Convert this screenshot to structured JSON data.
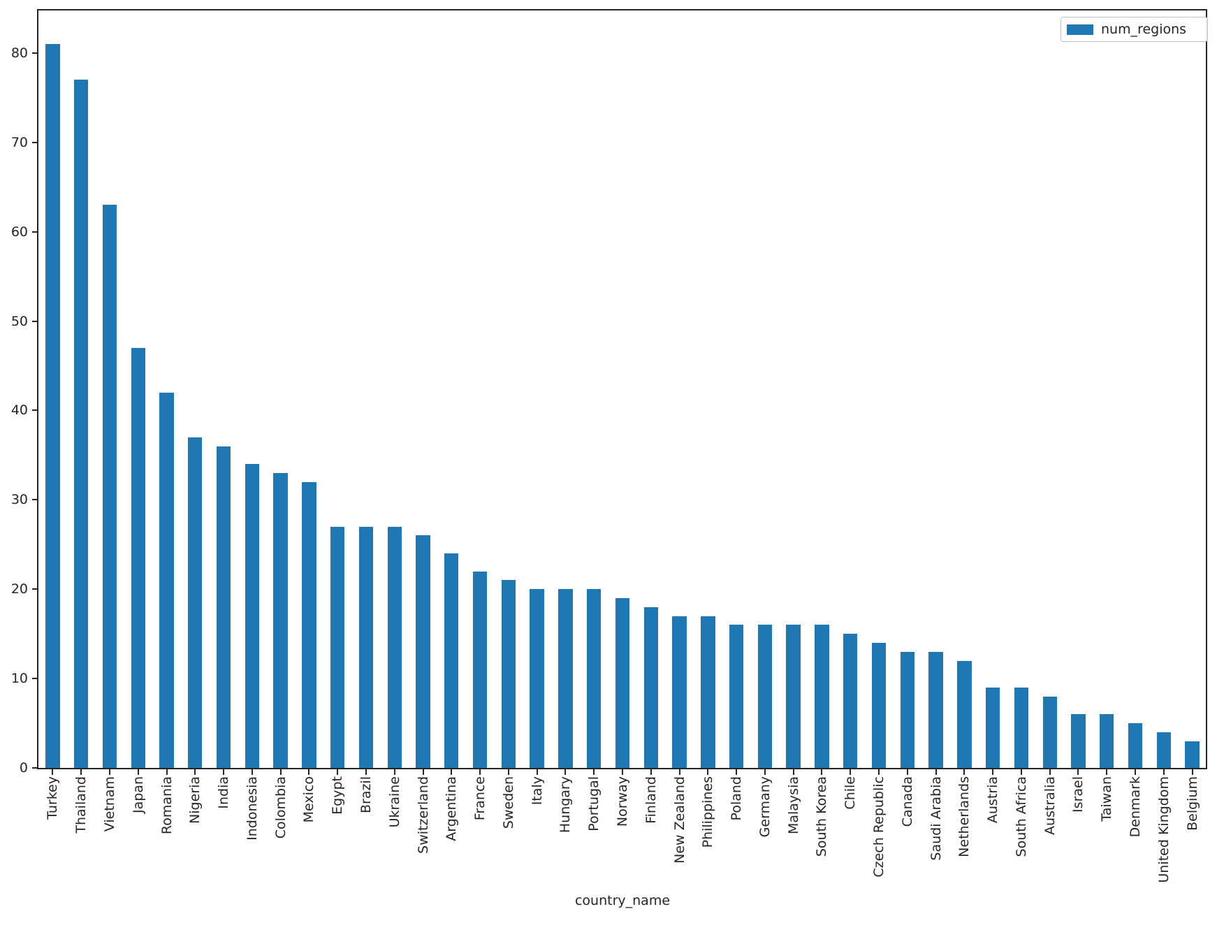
{
  "chart_data": {
    "type": "bar",
    "title": "",
    "xlabel": "country_name",
    "ylabel": "",
    "categories": [
      "Turkey",
      "Thailand",
      "Vietnam",
      "Japan",
      "Romania",
      "Nigeria",
      "India",
      "Indonesia",
      "Colombia",
      "Mexico",
      "Egypt",
      "Brazil",
      "Ukraine",
      "Switzerland",
      "Argentina",
      "France",
      "Sweden",
      "Italy",
      "Hungary",
      "Portugal",
      "Norway",
      "Finland",
      "New Zealand",
      "Philippines",
      "Poland",
      "Germany",
      "Malaysia",
      "South Korea",
      "Chile",
      "Czech Republic",
      "Canada",
      "Saudi Arabia",
      "Netherlands",
      "Austria",
      "South Africa",
      "Australia",
      "Israel",
      "Taiwan",
      "Denmark",
      "United Kingdom",
      "Belgium"
    ],
    "series": [
      {
        "name": "num_regions",
        "values": [
          81,
          77,
          63,
          47,
          42,
          37,
          36,
          34,
          33,
          32,
          27,
          27,
          27,
          26,
          24,
          22,
          21,
          20,
          20,
          20,
          19,
          18,
          17,
          17,
          16,
          16,
          16,
          16,
          15,
          14,
          13,
          13,
          12,
          9,
          9,
          8,
          6,
          6,
          5,
          4,
          3
        ]
      }
    ],
    "ylim": [
      0,
      85
    ],
    "yticks": [
      0,
      10,
      20,
      30,
      40,
      50,
      60,
      70,
      80
    ],
    "grid": false,
    "legend": {
      "position": "upper right",
      "label": "num_regions"
    },
    "colors": {
      "bar": "#1f77b4",
      "spine": "#262626",
      "text": "#262626",
      "legend_border": "#c0c0c0",
      "background": "#ffffff"
    }
  }
}
